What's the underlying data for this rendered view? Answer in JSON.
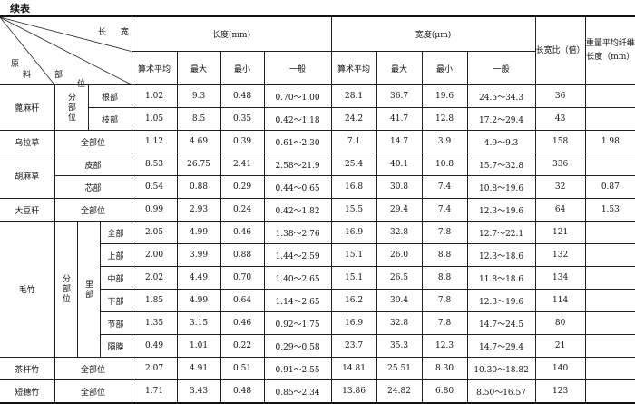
{
  "caption": "续表",
  "header": {
    "corner_top": [
      "长",
      "宽"
    ],
    "corner_bottom": [
      "原",
      "料",
      "部",
      "位"
    ],
    "length_group": "长度(mm)",
    "width_group": "宽度(μm)",
    "sub_cols": [
      "算术平均",
      "最大",
      "最小",
      "一般"
    ],
    "ratio": "长宽比（倍）",
    "weight_avg": "重量平均纤维长度（mm）"
  },
  "labels": {
    "fenbuwei": "分部位",
    "libu": "里部",
    "quanbuwei": "全部位"
  },
  "rows": [
    {
      "material": "蓖麻秆",
      "part": "根部",
      "values": [
        "1.02",
        "9.3",
        "0.48",
        "0.70～1.00",
        "28.1",
        "36.7",
        "19.6",
        "24.5～34.3",
        "36",
        ""
      ]
    },
    {
      "material": "蓖麻秆",
      "part": "枝部",
      "values": [
        "1.05",
        "8.5",
        "0.35",
        "0.42～1.18",
        "24.2",
        "41.7",
        "12.8",
        "17.2～29.4",
        "43",
        ""
      ]
    },
    {
      "material": "乌拉草",
      "part": "全部位",
      "values": [
        "1.12",
        "4.69",
        "0.39",
        "0.61～2.30",
        "7.1",
        "14.7",
        "3.9",
        "4.9～9.3",
        "158",
        "1.98"
      ]
    },
    {
      "material": "胡麻草",
      "part": "皮部",
      "values": [
        "8.53",
        "26.75",
        "2.41",
        "2.58～21.9",
        "25.4",
        "40.1",
        "10.8",
        "15.7～32.8",
        "336",
        ""
      ]
    },
    {
      "material": "胡麻草",
      "part": "芯部",
      "values": [
        "0.54",
        "0.88",
        "0.29",
        "0.44～0.65",
        "16.8",
        "30.8",
        "7.4",
        "10.8～19.6",
        "32",
        "0.87"
      ]
    },
    {
      "material": "大豆秆",
      "part": "全部位",
      "values": [
        "0.99",
        "2.93",
        "0.24",
        "0.42～1.82",
        "15.5",
        "29.4",
        "7.4",
        "12.3～19.6",
        "64",
        "1.53"
      ]
    },
    {
      "material": "毛竹",
      "part": "全部",
      "values": [
        "2.05",
        "4.99",
        "0.46",
        "1.38～2.76",
        "16.9",
        "32.8",
        "7.8",
        "12.7～22.1",
        "121",
        ""
      ]
    },
    {
      "material": "毛竹",
      "part": "上部",
      "values": [
        "2.00",
        "3.99",
        "0.88",
        "1.44～2.59",
        "15.1",
        "26.0",
        "8.8",
        "12.3～18.6",
        "132",
        ""
      ]
    },
    {
      "material": "毛竹",
      "part": "中部",
      "values": [
        "2.02",
        "4.49",
        "0.70",
        "1.40～2.65",
        "15.1",
        "26.5",
        "8.8",
        "11.8～18.6",
        "134",
        ""
      ]
    },
    {
      "material": "毛竹",
      "part": "下部",
      "values": [
        "1.85",
        "4.99",
        "0.64",
        "1.14～2.65",
        "16.2",
        "30.4",
        "7.8",
        "12.3～19.6",
        "114",
        ""
      ]
    },
    {
      "material": "毛竹",
      "part": "节部",
      "values": [
        "1.35",
        "3.15",
        "0.46",
        "0.92～1.75",
        "16.9",
        "32.8",
        "7.8",
        "14.7～24.5",
        "80",
        ""
      ]
    },
    {
      "material": "毛竹",
      "part": "隔膜",
      "values": [
        "0.49",
        "1.01",
        "0.22",
        "0.29～0.58",
        "23.7",
        "35.3",
        "12.3",
        "14.7～29.4",
        "21",
        ""
      ]
    },
    {
      "material": "茶杆竹",
      "part": "全部位",
      "values": [
        "2.07",
        "4.91",
        "0.51",
        "0.91～2.55",
        "14.81",
        "25.51",
        "8.30",
        "10.30～18.82",
        "140",
        ""
      ]
    },
    {
      "material": "短穗竹",
      "part": "全部位",
      "values": [
        "1.71",
        "3.43",
        "0.48",
        "0.85～2.34",
        "13.86",
        "24.82",
        "6.80",
        "8.50～16.57",
        "123",
        ""
      ]
    }
  ]
}
